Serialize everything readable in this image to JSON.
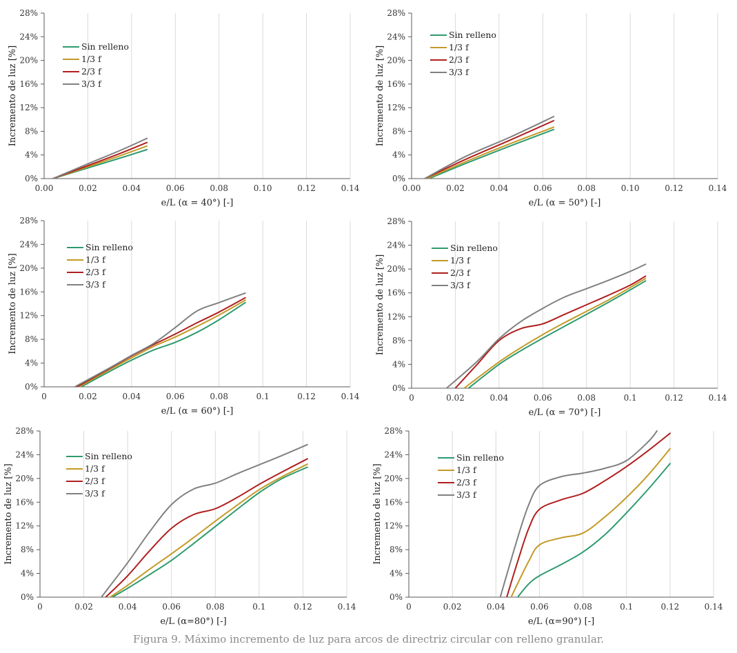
{
  "caption": "Figura 9. Máximo incremento de luz para arcos de directriz circular con relleno granular.",
  "colors": {
    "sin_relleno": "#2e9a6e",
    "f13": "#c49a26",
    "f23": "#b01e1e",
    "f33": "#808080",
    "grid": "#d9d9d9",
    "axis": "#595959"
  },
  "chart_data": [
    {
      "type": "line",
      "xlabel": "e/L (α = 40°) [-]",
      "ylabel": "Incremento de luz [%]",
      "xlim": [
        0,
        0.14
      ],
      "ylim": [
        0,
        28
      ],
      "xticks": [
        "0.00",
        "0.02",
        "0.04",
        "0.06",
        "0.08",
        "0.10",
        "0.12",
        "0.14"
      ],
      "yticks": [
        "0%",
        "4%",
        "8%",
        "12%",
        "16%",
        "20%",
        "24%",
        "28%"
      ],
      "grid": "vertical",
      "legend": "top-left",
      "series": [
        {
          "name": "Sin relleno",
          "color": "#2e9a6e",
          "x": [
            0.004,
            0.02,
            0.035,
            0.047
          ],
          "y": [
            0,
            1.8,
            3.5,
            4.9
          ]
        },
        {
          "name": "1/3 f",
          "color": "#c49a26",
          "x": [
            0.004,
            0.02,
            0.035,
            0.047
          ],
          "y": [
            0,
            2.0,
            3.9,
            5.5
          ]
        },
        {
          "name": "2/3 f",
          "color": "#b01e1e",
          "x": [
            0.004,
            0.02,
            0.035,
            0.047
          ],
          "y": [
            0,
            2.2,
            4.3,
            6.1
          ]
        },
        {
          "name": "3/3 f",
          "color": "#808080",
          "x": [
            0.004,
            0.02,
            0.035,
            0.047
          ],
          "y": [
            0,
            2.5,
            4.8,
            6.8
          ]
        }
      ]
    },
    {
      "type": "line",
      "xlabel": "e/L (α = 50°) [-]",
      "ylabel": "Incremento de luz [%]",
      "xlim": [
        0,
        0.14
      ],
      "ylim": [
        0,
        28
      ],
      "xticks": [
        "0.00",
        "0.02",
        "0.04",
        "0.06",
        "0.08",
        "0.10",
        "0.12",
        "0.14"
      ],
      "yticks": [
        "0%",
        "4%",
        "8%",
        "12%",
        "16%",
        "20%",
        "24%",
        "28%"
      ],
      "grid": "vertical",
      "legend": "top-left",
      "series": [
        {
          "name": "Sin relleno",
          "color": "#2e9a6e",
          "x": [
            0.008,
            0.025,
            0.045,
            0.065
          ],
          "y": [
            0,
            2.6,
            5.5,
            8.3
          ]
        },
        {
          "name": "1/3 f",
          "color": "#c49a26",
          "x": [
            0.007,
            0.025,
            0.045,
            0.065
          ],
          "y": [
            0,
            2.9,
            5.9,
            8.7
          ]
        },
        {
          "name": "2/3 f",
          "color": "#b01e1e",
          "x": [
            0.006,
            0.025,
            0.045,
            0.065
          ],
          "y": [
            0,
            3.3,
            6.5,
            9.8
          ]
        },
        {
          "name": "3/3 f",
          "color": "#808080",
          "x": [
            0.006,
            0.025,
            0.045,
            0.065
          ],
          "y": [
            0,
            3.8,
            7.0,
            10.5
          ]
        }
      ]
    },
    {
      "type": "line",
      "xlabel": "e/L (α = 60°) [-]",
      "ylabel": "Incremento de luz [%]",
      "xlim": [
        0,
        0.14
      ],
      "ylim": [
        0,
        28
      ],
      "xticks": [
        "0",
        "0.02",
        "0.04",
        "0.06",
        "0.08",
        "0.1",
        "0.12",
        "0.14"
      ],
      "yticks": [
        "0%",
        "4%",
        "8%",
        "12%",
        "16%",
        "20%",
        "24%",
        "28%"
      ],
      "grid": "vertical",
      "legend": "top-left",
      "series": [
        {
          "name": "Sin relleno",
          "color": "#2e9a6e",
          "x": [
            0.017,
            0.03,
            0.04,
            0.05,
            0.06,
            0.07,
            0.08,
            0.092
          ],
          "y": [
            0,
            2.6,
            4.5,
            6.2,
            7.5,
            9.2,
            11.3,
            14.2
          ]
        },
        {
          "name": "1/3 f",
          "color": "#c49a26",
          "x": [
            0.016,
            0.03,
            0.04,
            0.05,
            0.06,
            0.07,
            0.08,
            0.092
          ],
          "y": [
            0,
            2.9,
            4.9,
            6.8,
            8.4,
            10.2,
            12.1,
            14.6
          ]
        },
        {
          "name": "2/3 f",
          "color": "#b01e1e",
          "x": [
            0.015,
            0.03,
            0.04,
            0.05,
            0.06,
            0.07,
            0.08,
            0.092
          ],
          "y": [
            0,
            3.1,
            5.2,
            7.1,
            8.9,
            10.8,
            12.6,
            15.0
          ]
        },
        {
          "name": "3/3 f",
          "color": "#808080",
          "x": [
            0.014,
            0.03,
            0.04,
            0.05,
            0.06,
            0.07,
            0.08,
            0.092
          ],
          "y": [
            0,
            3.2,
            5.3,
            7.3,
            10.0,
            12.8,
            14.2,
            15.8
          ]
        }
      ]
    },
    {
      "type": "line",
      "xlabel": "e/L (α = 70°) [-]",
      "ylabel": "Incremento de luz [%]",
      "xlim": [
        0,
        0.14
      ],
      "ylim": [
        0,
        28
      ],
      "xticks": [
        "0",
        "0.02",
        "0.04",
        "0.06",
        "0.08",
        "0.1",
        "0.12",
        "0.14"
      ],
      "yticks": [
        "0%",
        "4%",
        "8%",
        "12%",
        "16%",
        "20%",
        "24%",
        "28%"
      ],
      "grid": "vertical",
      "legend": "top-left",
      "series": [
        {
          "name": "Sin relleno",
          "color": "#2e9a6e",
          "x": [
            0.026,
            0.04,
            0.05,
            0.06,
            0.07,
            0.08,
            0.09,
            0.1,
            0.107
          ],
          "y": [
            0,
            4.0,
            6.3,
            8.4,
            10.4,
            12.4,
            14.4,
            16.5,
            18.0
          ]
        },
        {
          "name": "1/3 f",
          "color": "#c49a26",
          "x": [
            0.024,
            0.04,
            0.05,
            0.06,
            0.07,
            0.08,
            0.09,
            0.1,
            0.107
          ],
          "y": [
            0,
            4.4,
            6.8,
            9.0,
            11.0,
            12.9,
            14.8,
            16.9,
            18.4
          ]
        },
        {
          "name": "2/3 f",
          "color": "#b01e1e",
          "x": [
            0.02,
            0.03,
            0.04,
            0.05,
            0.06,
            0.07,
            0.08,
            0.09,
            0.1,
            0.107
          ],
          "y": [
            0,
            4.0,
            8.0,
            10.0,
            10.8,
            12.4,
            14.0,
            15.6,
            17.3,
            18.8
          ]
        },
        {
          "name": "3/3 f",
          "color": "#808080",
          "x": [
            0.016,
            0.03,
            0.04,
            0.05,
            0.06,
            0.07,
            0.08,
            0.09,
            0.1,
            0.107
          ],
          "y": [
            0,
            4.5,
            8.3,
            11.2,
            13.4,
            15.3,
            16.7,
            18.1,
            19.6,
            20.8
          ]
        }
      ]
    },
    {
      "type": "line",
      "xlabel": "e/L (α=80°) [-]",
      "ylabel": "Incremento de luz [%]",
      "xlim": [
        0,
        0.14
      ],
      "ylim": [
        0,
        28
      ],
      "xticks": [
        "0",
        "0.02",
        "0.04",
        "0.06",
        "0.08",
        "0.1",
        "0.12",
        "0.14"
      ],
      "yticks": [
        "0%",
        "4%",
        "8%",
        "12%",
        "16%",
        "20%",
        "24%",
        "28%"
      ],
      "grid": "vertical",
      "legend": "top-left",
      "series": [
        {
          "name": "Sin relleno",
          "color": "#2e9a6e",
          "x": [
            0.033,
            0.04,
            0.05,
            0.06,
            0.07,
            0.08,
            0.09,
            0.1,
            0.11,
            0.122
          ],
          "y": [
            0,
            1.5,
            3.8,
            6.2,
            9.0,
            11.9,
            14.8,
            17.6,
            19.9,
            21.9
          ]
        },
        {
          "name": "1/3 f",
          "color": "#c49a26",
          "x": [
            0.032,
            0.04,
            0.05,
            0.06,
            0.07,
            0.08,
            0.09,
            0.1,
            0.11,
            0.122
          ],
          "y": [
            0,
            2.0,
            4.7,
            7.3,
            10.0,
            12.8,
            15.5,
            18.1,
            20.2,
            22.4
          ]
        },
        {
          "name": "2/3 f",
          "color": "#b01e1e",
          "x": [
            0.03,
            0.04,
            0.05,
            0.06,
            0.07,
            0.08,
            0.09,
            0.1,
            0.11,
            0.122
          ],
          "y": [
            0,
            3.6,
            7.8,
            11.6,
            13.9,
            14.9,
            16.8,
            19.0,
            21.0,
            23.3
          ]
        },
        {
          "name": "3/3 f",
          "color": "#808080",
          "x": [
            0.028,
            0.04,
            0.05,
            0.06,
            0.07,
            0.08,
            0.09,
            0.1,
            0.11,
            0.122
          ],
          "y": [
            0,
            5.8,
            11.0,
            15.6,
            18.2,
            19.2,
            20.8,
            22.3,
            23.8,
            25.7
          ]
        }
      ]
    },
    {
      "type": "line",
      "xlabel": "e/L (α=90°) [-]",
      "ylabel": "Incremento de luz [%]",
      "xlim": [
        0,
        0.14
      ],
      "ylim": [
        0,
        28
      ],
      "xticks": [
        "0",
        "0.02",
        "0.04",
        "0.06",
        "0.08",
        "0.1",
        "0.12",
        "0.14"
      ],
      "yticks": [
        "0%",
        "4%",
        "8%",
        "12%",
        "16%",
        "20%",
        "24%",
        "28%"
      ],
      "grid": "vertical",
      "legend": "top-left",
      "series": [
        {
          "name": "Sin relleno",
          "color": "#2e9a6e",
          "x": [
            0.05,
            0.055,
            0.06,
            0.07,
            0.08,
            0.09,
            0.1,
            0.11,
            0.12
          ],
          "y": [
            0,
            2.2,
            3.6,
            5.5,
            7.6,
            10.5,
            14.2,
            18.2,
            22.5
          ]
        },
        {
          "name": "1/3 f",
          "color": "#c49a26",
          "x": [
            0.047,
            0.055,
            0.06,
            0.07,
            0.08,
            0.09,
            0.1,
            0.11,
            0.12
          ],
          "y": [
            0,
            6.0,
            8.8,
            10.0,
            10.8,
            13.5,
            16.8,
            20.6,
            25.0
          ]
        },
        {
          "name": "2/3 f",
          "color": "#b01e1e",
          "x": [
            0.045,
            0.05,
            0.055,
            0.06,
            0.07,
            0.08,
            0.09,
            0.1,
            0.11,
            0.12
          ],
          "y": [
            0,
            6.0,
            11.5,
            14.8,
            16.4,
            17.5,
            19.6,
            22.0,
            24.7,
            27.6
          ]
        },
        {
          "name": "3/3 f",
          "color": "#808080",
          "x": [
            0.042,
            0.05,
            0.055,
            0.06,
            0.07,
            0.08,
            0.09,
            0.1,
            0.11,
            0.114
          ],
          "y": [
            0,
            10.0,
            15.5,
            18.8,
            20.3,
            20.9,
            21.7,
            23.0,
            26.2,
            28.0
          ]
        }
      ]
    }
  ]
}
